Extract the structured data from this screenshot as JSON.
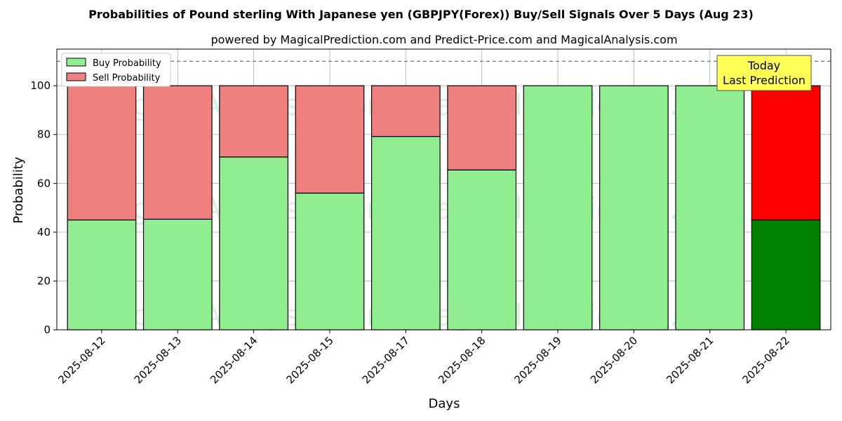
{
  "chart_data": {
    "type": "bar",
    "stacked": true,
    "title": "Probabilities of Pound sterling With Japanese yen (GBPJPY(Forex)) Buy/Sell Signals Over 5 Days (Aug 23)",
    "subtitle": "powered by MagicalPrediction.com and Predict-Price.com and MagicalAnalysis.com",
    "xlabel": "Days",
    "ylabel": "Probability",
    "ylim": [
      0,
      115
    ],
    "yticks": [
      0,
      20,
      40,
      60,
      80,
      100
    ],
    "grid": true,
    "legend_placement": "top-left",
    "reference_line": 110,
    "categories": [
      "2025-08-12",
      "2025-08-13",
      "2025-08-14",
      "2025-08-15",
      "2025-08-17",
      "2025-08-18",
      "2025-08-19",
      "2025-08-20",
      "2025-08-21",
      "2025-08-22"
    ],
    "series": [
      {
        "name": "Buy Probability",
        "color": "#90ee90",
        "highlight_color": "#008000",
        "values": [
          45,
          45.3,
          70.8,
          56,
          79.2,
          65.5,
          100,
          100,
          100,
          45
        ]
      },
      {
        "name": "Sell Probability",
        "color": "#f08080",
        "highlight_color": "#ff0000",
        "values": [
          55,
          54.7,
          29.2,
          44,
          20.8,
          34.5,
          0,
          0,
          0,
          55
        ]
      }
    ],
    "highlight_index": 9,
    "annotation": {
      "line1": "Today",
      "line2": "Last Prediction",
      "background": "#ffff55"
    },
    "watermarks": [
      "MagicalAnalysis.com",
      "MagicalPrediction.com"
    ]
  }
}
